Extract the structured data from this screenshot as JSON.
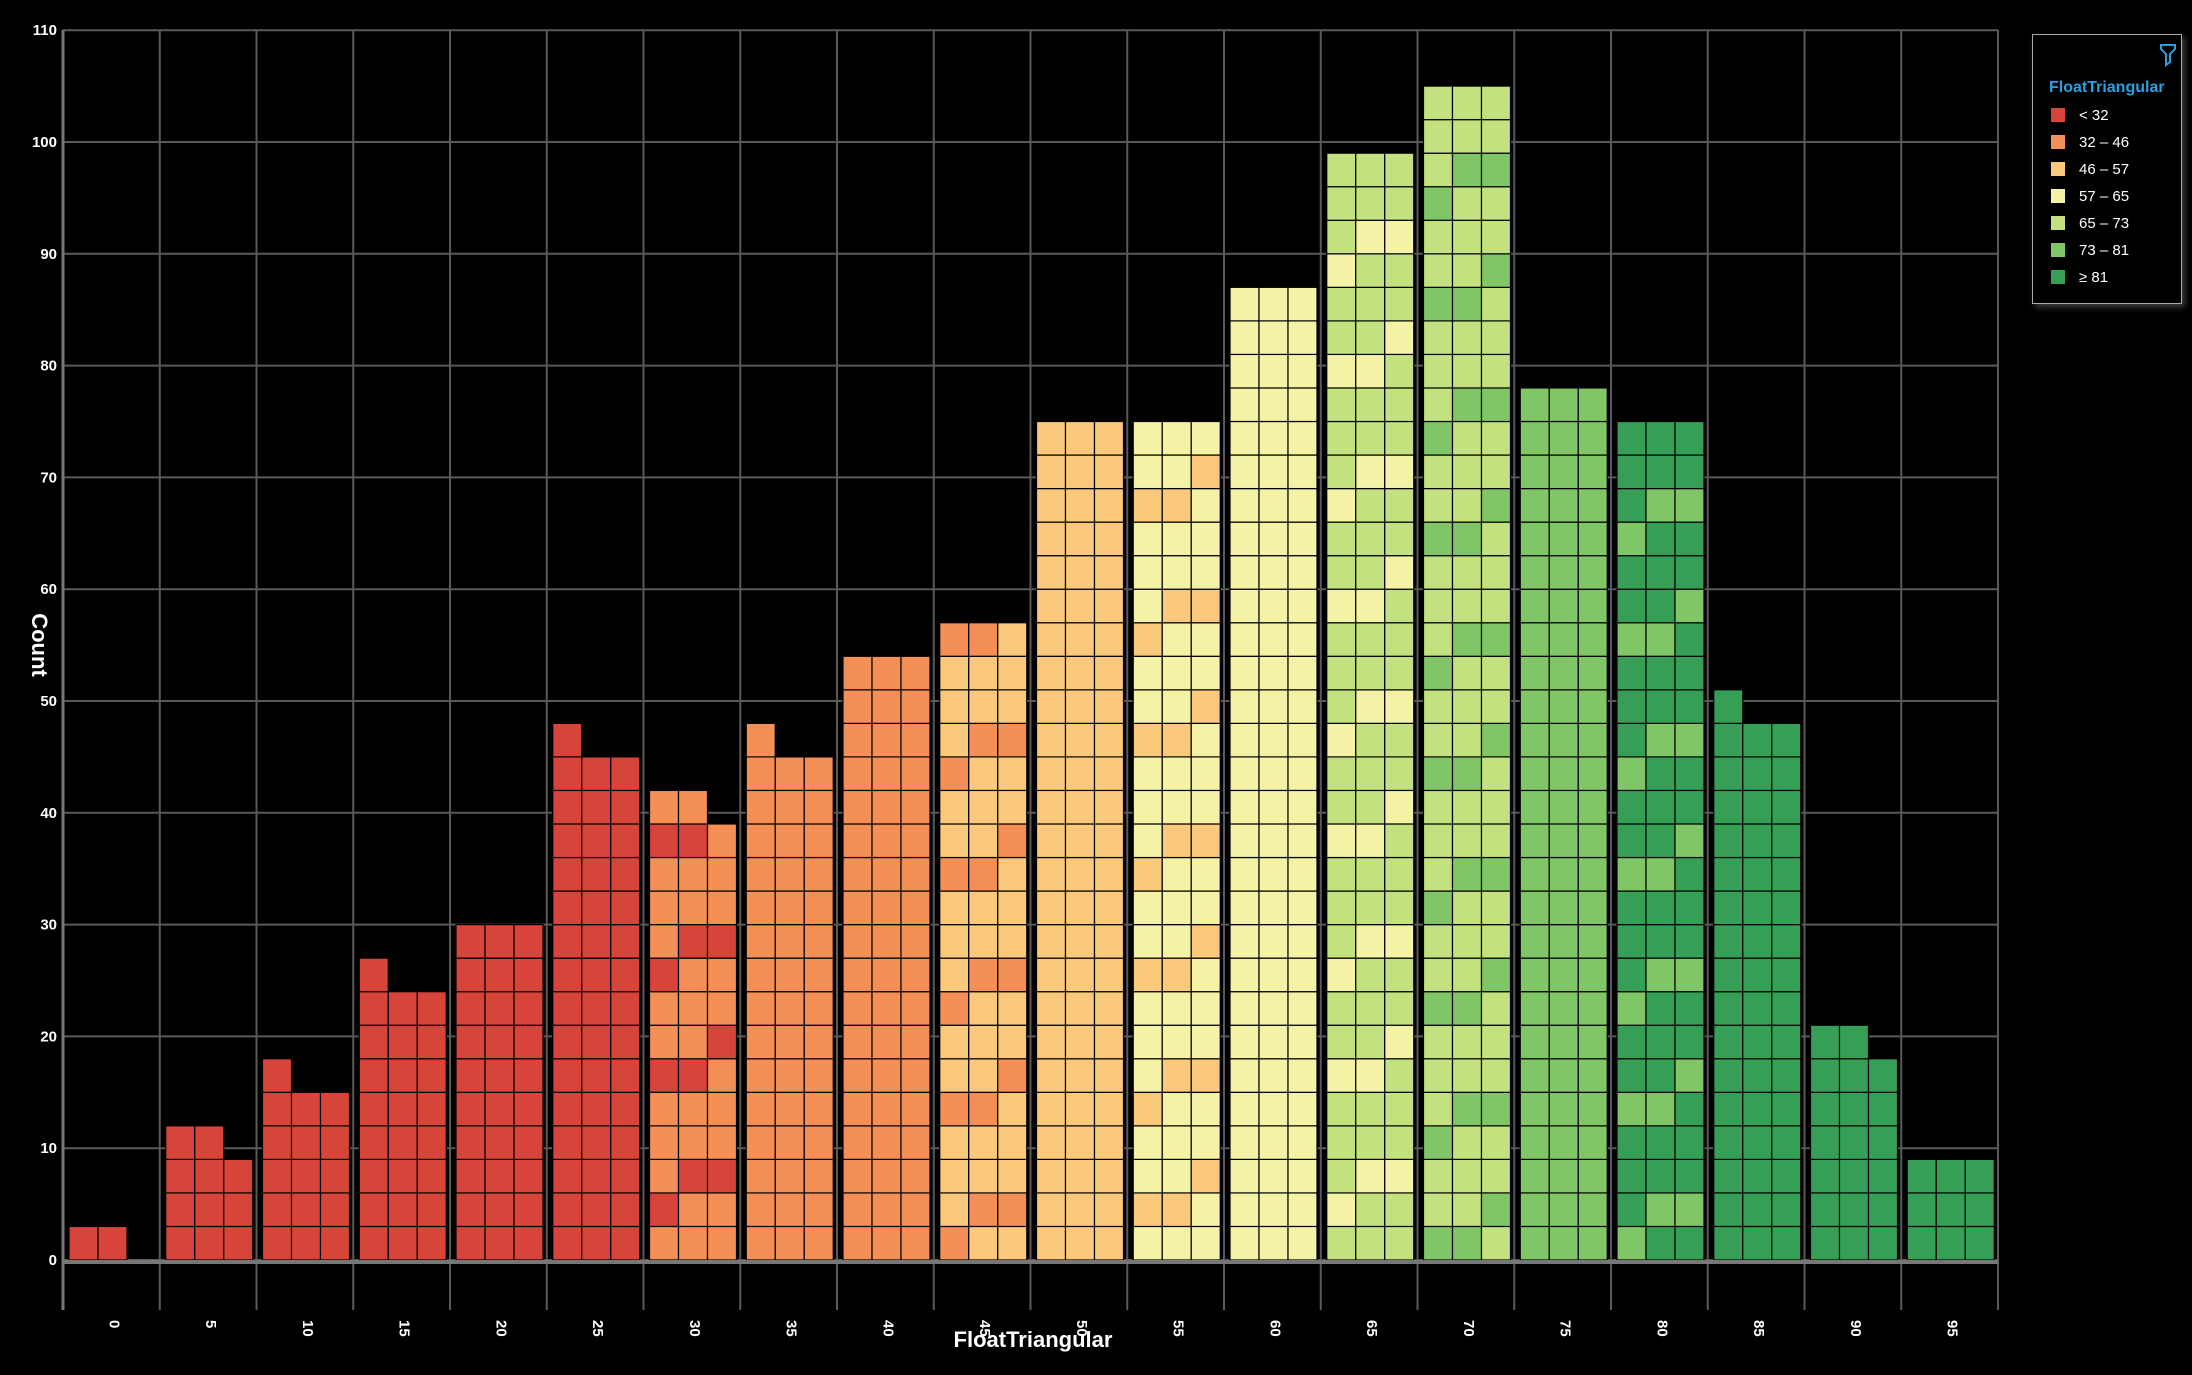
{
  "chart_data": {
    "type": "bar",
    "title": "",
    "xlabel": "FloatTriangular",
    "ylabel": "Count",
    "ylim": [
      0,
      110
    ],
    "y_ticks": [
      0,
      10,
      20,
      30,
      40,
      50,
      60,
      70,
      80,
      90,
      100,
      110
    ],
    "grid": true,
    "categories": [
      "0",
      "5",
      "10",
      "15",
      "20",
      "25",
      "30",
      "35",
      "40",
      "45",
      "50",
      "55",
      "60",
      "65",
      "70",
      "75",
      "80",
      "85",
      "90",
      "95"
    ],
    "bins": [
      {
        "x": "0",
        "values": [
          3,
          3,
          0
        ],
        "class": 0
      },
      {
        "x": "5",
        "values": [
          12,
          12,
          9
        ],
        "class": 0
      },
      {
        "x": "10",
        "values": [
          18,
          15,
          15
        ],
        "class": 0
      },
      {
        "x": "15",
        "values": [
          27,
          24,
          24
        ],
        "class": 0
      },
      {
        "x": "20",
        "values": [
          30,
          30,
          30
        ],
        "class": 0
      },
      {
        "x": "25",
        "values": [
          48,
          45,
          45
        ],
        "class": 0
      },
      {
        "x": "30",
        "values": [
          42,
          42,
          39
        ],
        "class": 1,
        "mixed_with": 0
      },
      {
        "x": "35",
        "values": [
          48,
          45,
          45
        ],
        "class": 1
      },
      {
        "x": "40",
        "values": [
          54,
          54,
          54
        ],
        "class": 1
      },
      {
        "x": "45",
        "values": [
          57,
          57,
          57
        ],
        "class": 2,
        "mixed_with": 1
      },
      {
        "x": "50",
        "values": [
          75,
          75,
          75
        ],
        "class": 2
      },
      {
        "x": "55",
        "values": [
          75,
          75,
          75
        ],
        "class": 3,
        "mixed_with": 2
      },
      {
        "x": "60",
        "values": [
          87,
          87,
          87
        ],
        "class": 3
      },
      {
        "x": "65",
        "values": [
          99,
          99,
          99
        ],
        "class": 4,
        "mixed_with": 3
      },
      {
        "x": "70",
        "values": [
          105,
          105,
          105
        ],
        "class": 4,
        "mixed_with": 5
      },
      {
        "x": "75",
        "values": [
          78,
          78,
          78
        ],
        "class": 5
      },
      {
        "x": "80",
        "values": [
          75,
          75,
          75
        ],
        "class": 6,
        "mixed_with": 5
      },
      {
        "x": "85",
        "values": [
          51,
          48,
          48
        ],
        "class": 6
      },
      {
        "x": "90",
        "values": [
          21,
          21,
          18
        ],
        "class": 6
      },
      {
        "x": "95",
        "values": [
          9,
          9,
          9
        ],
        "class": 6
      }
    ],
    "legend": {
      "title": "FloatTriangular",
      "placement": "top-right",
      "items": [
        {
          "label": "< 32",
          "color": "#d7443a"
        },
        {
          "label": "32 – 46",
          "color": "#f48f56"
        },
        {
          "label": "46 – 57",
          "color": "#fbc97c"
        },
        {
          "label": "57 – 65",
          "color": "#f3f2a5"
        },
        {
          "label": "65 – 73",
          "color": "#c3e27f"
        },
        {
          "label": "73 – 81",
          "color": "#80c667"
        },
        {
          "label": "≥ 81",
          "color": "#35a055"
        }
      ]
    }
  }
}
